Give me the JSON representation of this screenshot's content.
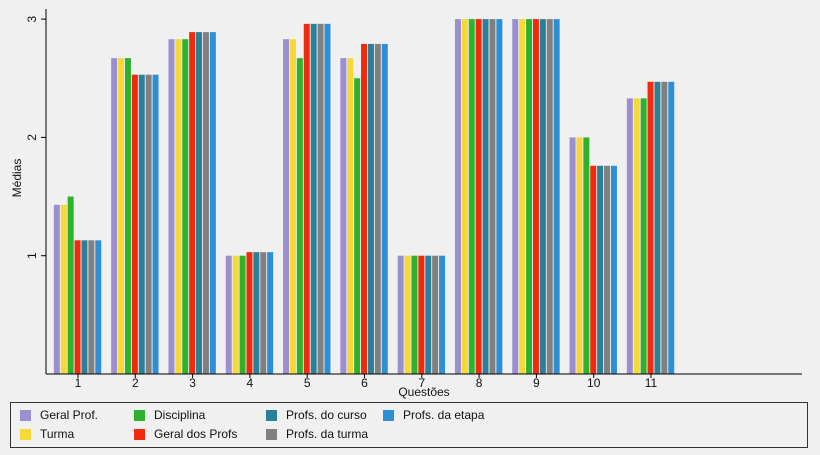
{
  "chart_data": {
    "type": "bar",
    "title": "",
    "xlabel": "Questões",
    "ylabel": "Médias",
    "categories": [
      "1",
      "2",
      "3",
      "4",
      "5",
      "6",
      "7",
      "8",
      "9",
      "10",
      "11"
    ],
    "yticks": [
      "1",
      "2",
      "3"
    ],
    "ylim": [
      0,
      3.05
    ],
    "grid": false,
    "legend_position": "bottom",
    "series": [
      {
        "name": "Geral Prof.",
        "color": "#9b8fcf",
        "values": [
          1.43,
          2.67,
          2.83,
          1.0,
          2.83,
          2.67,
          1.0,
          3.0,
          3.0,
          2.0,
          2.33
        ]
      },
      {
        "name": "Turma",
        "color": "#f6d836",
        "values": [
          1.43,
          2.67,
          2.83,
          1.0,
          2.83,
          2.67,
          1.0,
          3.0,
          3.0,
          2.0,
          2.33
        ]
      },
      {
        "name": "Disciplina",
        "color": "#2eb22e",
        "values": [
          1.5,
          2.67,
          2.83,
          1.0,
          2.67,
          2.5,
          1.0,
          3.0,
          3.0,
          2.0,
          2.33
        ]
      },
      {
        "name": "Geral dos Profs",
        "color": "#f02a0c",
        "values": [
          1.13,
          2.53,
          2.89,
          1.03,
          2.96,
          2.79,
          1.0,
          3.0,
          3.0,
          1.76,
          2.47
        ]
      },
      {
        "name": "Profs. do curso",
        "color": "#2b7f98",
        "values": [
          1.13,
          2.53,
          2.89,
          1.03,
          2.96,
          2.79,
          1.0,
          3.0,
          3.0,
          1.76,
          2.47
        ]
      },
      {
        "name": "Profs. da turma",
        "color": "#808080",
        "values": [
          1.13,
          2.53,
          2.89,
          1.03,
          2.96,
          2.79,
          1.0,
          3.0,
          3.0,
          1.76,
          2.47
        ]
      },
      {
        "name": "Profs. da etapa",
        "color": "#2f8fd6",
        "values": [
          1.13,
          2.53,
          2.89,
          1.03,
          2.96,
          2.79,
          1.0,
          3.0,
          3.0,
          1.76,
          2.47
        ]
      }
    ]
  }
}
